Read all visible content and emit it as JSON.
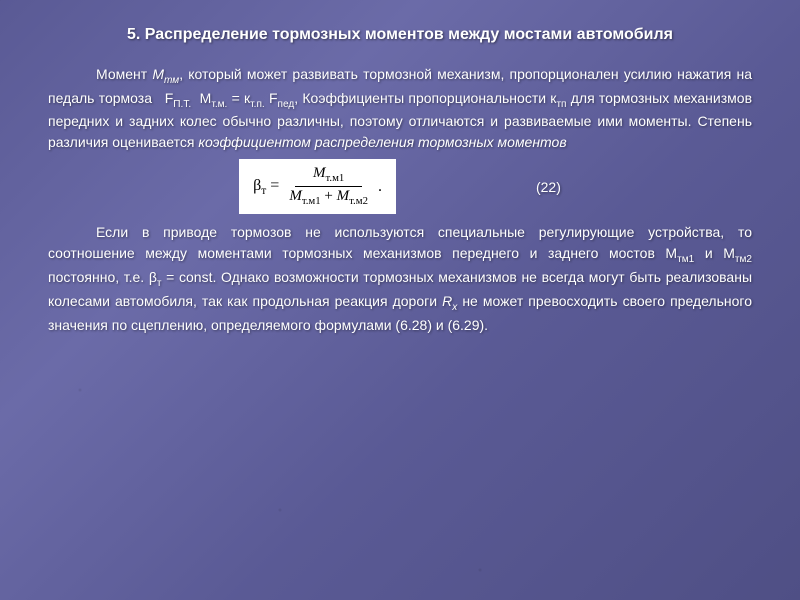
{
  "slide": {
    "title": "5. Распределение тормозных моментов между мостами автомобиля",
    "p1_a": "Момент ",
    "p1_sym": "М",
    "p1_sub": "тм",
    "p1_b": ", который может развивать тормозной механизм, пропорционален усилию нажатия на педаль тормоза   F",
    "p1_sub2": "П.Т.",
    "p1_c": "  М",
    "p1_sub3": "т.м.",
    "p1_d": " = к",
    "p1_sub4": "т.п.",
    "p1_e": " F",
    "p1_sub5": "пед",
    "p1_f": ", Коэффициенты пропорциональности к",
    "p1_sub6": "тп",
    "p1_g": " для тормозных механизмов передних и задних колес обычно различны, поэтому отличаются и развиваемые ими моменты. Степень различия оценивается ",
    "p1_h": "коэффициентом распределения тормозных моментов",
    "formula": {
      "lhs": "β",
      "lhs_sub": "т",
      "num": "M",
      "num_sub": "т.м1",
      "den_a": "M",
      "den_a_sub": "т.м1",
      "plus": " + ",
      "den_b": "M",
      "den_b_sub": "т.м2",
      "dot": ".",
      "eqnum": "(22)"
    },
    "p2_a": "Если в приводе тормозов не используются специальные регулирующие устройства, то соотношение между моментами тормозных механизмов переднего и заднего мостов М",
    "p2_sub1": "тм1",
    "p2_b": " и М",
    "p2_sub2": "тм2",
    "p2_c": " постоянно, т.е. β",
    "p2_sub3": "т",
    "p2_d": " = const. Однако возможности тормозных механизмов не всегда могут быть реализованы колесами автомобиля, так как продольная реакция дороги ",
    "p2_sym": "R",
    "p2_sub4": "x",
    "p2_e": " не может превосходить своего предельного значения по сцеплению, определяемого формулами (6.28) и (6.29)."
  }
}
